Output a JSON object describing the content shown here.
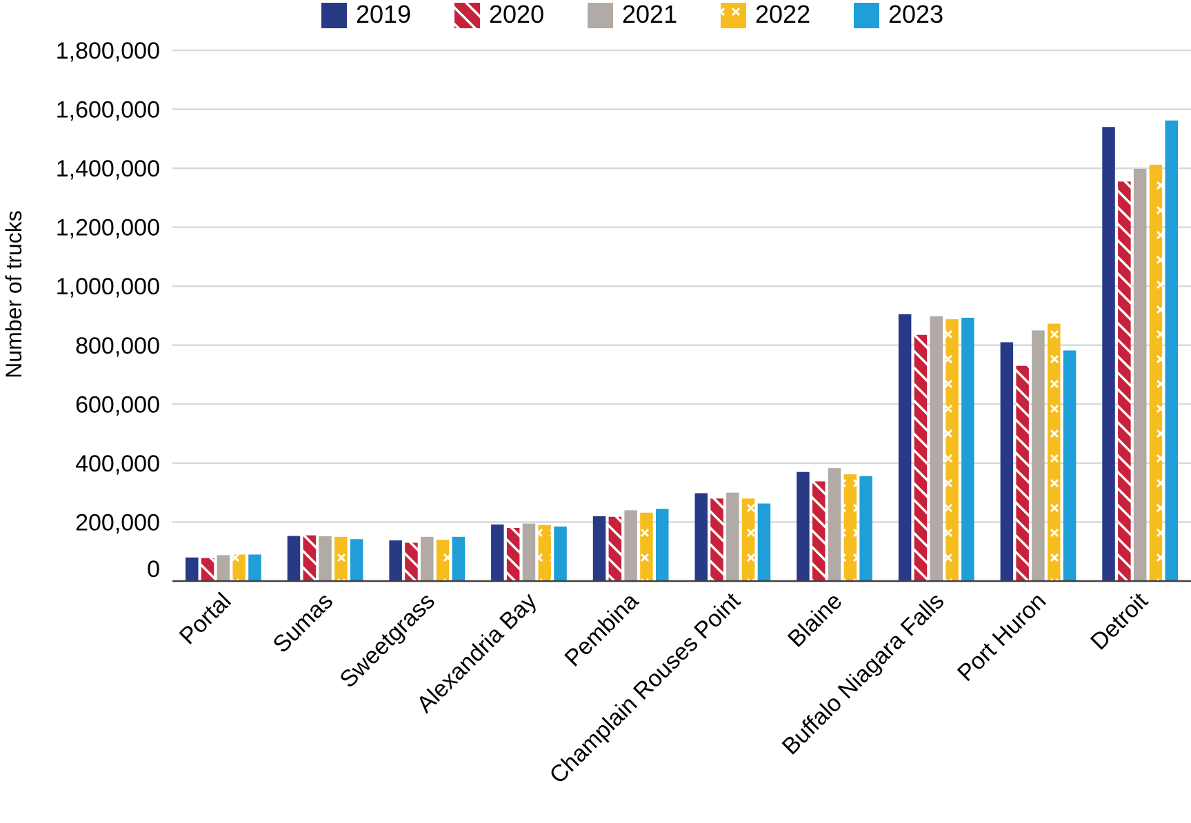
{
  "chart_data": {
    "type": "bar",
    "title": "",
    "xlabel": "",
    "ylabel": "Number of trucks",
    "ylim": [
      0,
      1800000
    ],
    "yticks": [
      0,
      200000,
      400000,
      600000,
      800000,
      1000000,
      1200000,
      1400000,
      1600000,
      1800000
    ],
    "ytick_labels": [
      "0",
      "200,000",
      "400,000",
      "600,000",
      "800,000",
      "1,000,000",
      "1,200,000",
      "1,400,000",
      "1,600,000",
      "1,800,000"
    ],
    "grid": true,
    "legend_position": "top-center",
    "categories": [
      "Portal",
      "Sumas",
      "Sweetgrass",
      "Alexandria Bay",
      "Pembina",
      "Champlain Rouses Point",
      "Blaine",
      "Buffalo Niagara Falls",
      "Port Huron",
      "Detroit"
    ],
    "series": [
      {
        "name": "2019",
        "color": "#283a86",
        "pattern": "solid",
        "values": [
          80000,
          153000,
          138000,
          192000,
          220000,
          298000,
          370000,
          905000,
          810000,
          1540000
        ]
      },
      {
        "name": "2020",
        "color": "#c8213b",
        "pattern": "diagonal",
        "values": [
          78000,
          155000,
          130000,
          180000,
          218000,
          280000,
          338000,
          835000,
          730000,
          1355000
        ]
      },
      {
        "name": "2021",
        "color": "#b2aaa5",
        "pattern": "solid",
        "values": [
          88000,
          152000,
          150000,
          195000,
          240000,
          300000,
          383000,
          898000,
          850000,
          1398000
        ]
      },
      {
        "name": "2022",
        "color": "#f6bd1f",
        "pattern": "cross",
        "values": [
          90000,
          150000,
          140000,
          190000,
          232000,
          280000,
          362000,
          888000,
          873000,
          1412000
        ]
      },
      {
        "name": "2023",
        "color": "#1f9ed8",
        "pattern": "solid",
        "values": [
          90000,
          142000,
          150000,
          185000,
          245000,
          263000,
          356000,
          893000,
          782000,
          1562000
        ]
      }
    ]
  }
}
